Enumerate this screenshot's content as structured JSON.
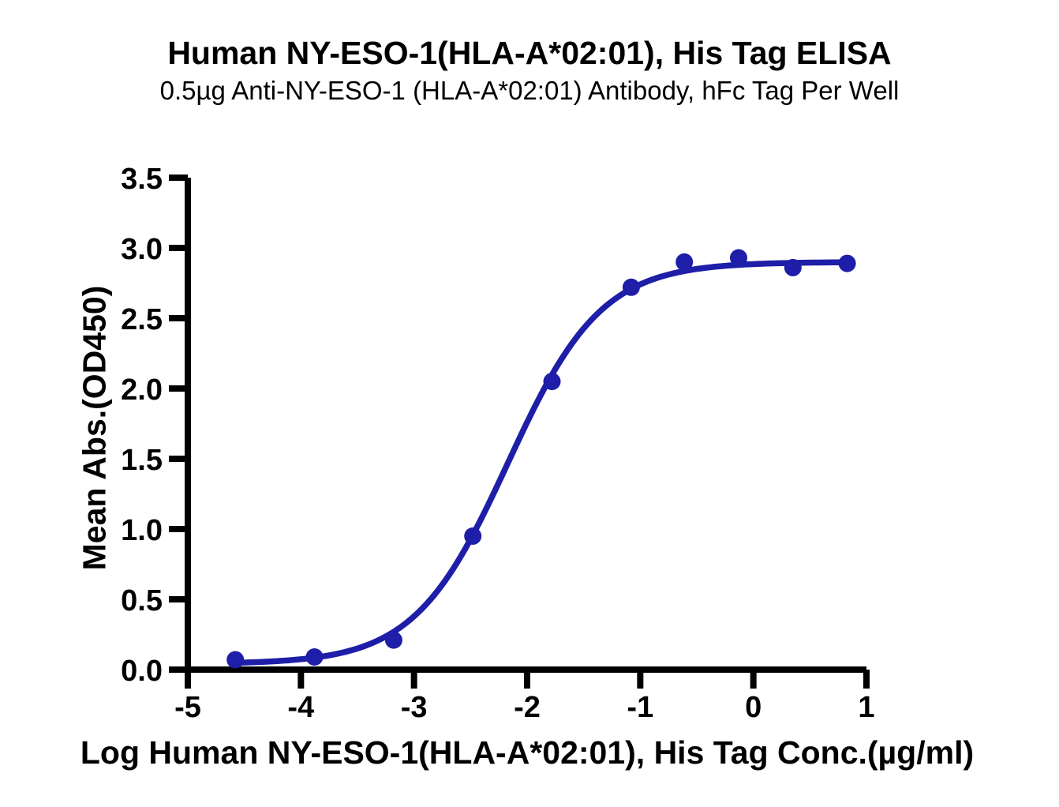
{
  "chart_data": {
    "type": "scatter",
    "title": "Human NY-ESO-1(HLA-A*02:01), His Tag ELISA",
    "subtitle": "0.5µg Anti-NY-ESO-1 (HLA-A*02:01) Antibody, hFc Tag Per Well",
    "xlabel": "Log Human NY-ESO-1(HLA-A*02:01), His Tag Conc.(µg/ml)",
    "ylabel": "Mean Abs.(OD450)",
    "xlim": [
      -5,
      1
    ],
    "ylim": [
      0,
      3.5
    ],
    "x_ticks": [
      -5,
      -4,
      -3,
      -2,
      -1,
      0,
      1
    ],
    "y_ticks": [
      0,
      0.5,
      1,
      1.5,
      2,
      2.5,
      3,
      3.5
    ],
    "y_tick_decimals": 1,
    "grid": false,
    "legend": "none",
    "series": [
      {
        "name": "Human NY-ESO-1(HLA-A*02:01), His Tag",
        "x": [
          -4.58,
          -3.88,
          -3.18,
          -2.48,
          -1.78,
          -1.08,
          -0.61,
          -0.13,
          0.35,
          0.83
        ],
        "y": [
          0.07,
          0.09,
          0.21,
          0.95,
          2.05,
          2.72,
          2.9,
          2.93,
          2.86,
          2.89
        ]
      }
    ],
    "fit_4pl": {
      "bottom": 0.04,
      "top": 2.9,
      "log_ec50": -2.17,
      "hill": 1.05
    },
    "curve_x_range": [
      -4.58,
      0.83
    ],
    "colors": {
      "curve": "#1E1EA8",
      "marker": "#1E1EA8",
      "axis": "#000000",
      "text": "#000000"
    },
    "marker_radius": 11,
    "curve_width": 7.5,
    "axis_width": 8
  }
}
